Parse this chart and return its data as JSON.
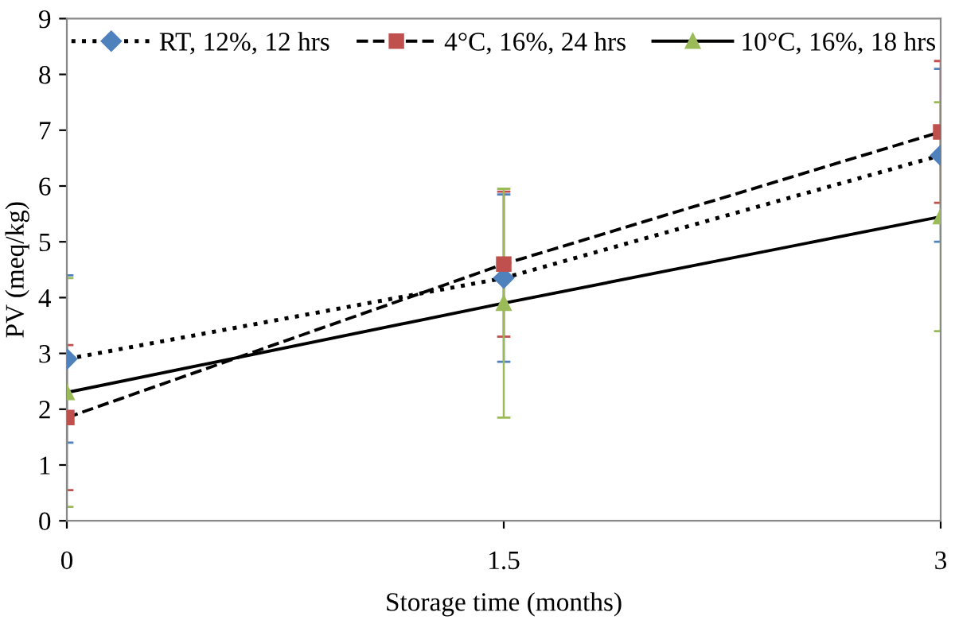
{
  "chart_data": {
    "type": "line",
    "xlabel": "Storage time (months)",
    "ylabel": "PV (meq/kg)",
    "x": [
      0,
      1.5,
      3
    ],
    "xlim": [
      0,
      3
    ],
    "xticks": [
      0,
      1.5,
      3
    ],
    "ylim": [
      0,
      9
    ],
    "yticks": [
      0,
      1,
      2,
      3,
      4,
      5,
      6,
      7,
      8,
      9
    ],
    "legend": "top",
    "grid": false,
    "series": [
      {
        "name": "RT, 12%, 12 hrs",
        "color": "#4f81bd",
        "values": [
          2.9,
          4.35,
          6.55
        ],
        "errors": [
          1.5,
          1.5,
          1.55
        ],
        "marker": "diamond",
        "line_style": "dotted"
      },
      {
        "name": "4°C, 16%, 24 hrs",
        "color": "#c0504d",
        "values": [
          1.85,
          4.6,
          6.97
        ],
        "errors": [
          1.3,
          1.3,
          1.27
        ],
        "marker": "square",
        "line_style": "dashed"
      },
      {
        "name": "10°C, 16%, 18 hrs",
        "color": "#9bbb59",
        "values": [
          2.3,
          3.9,
          5.45
        ],
        "errors": [
          2.05,
          2.05,
          2.05
        ],
        "marker": "triangle",
        "line_style": "solid"
      }
    ]
  }
}
